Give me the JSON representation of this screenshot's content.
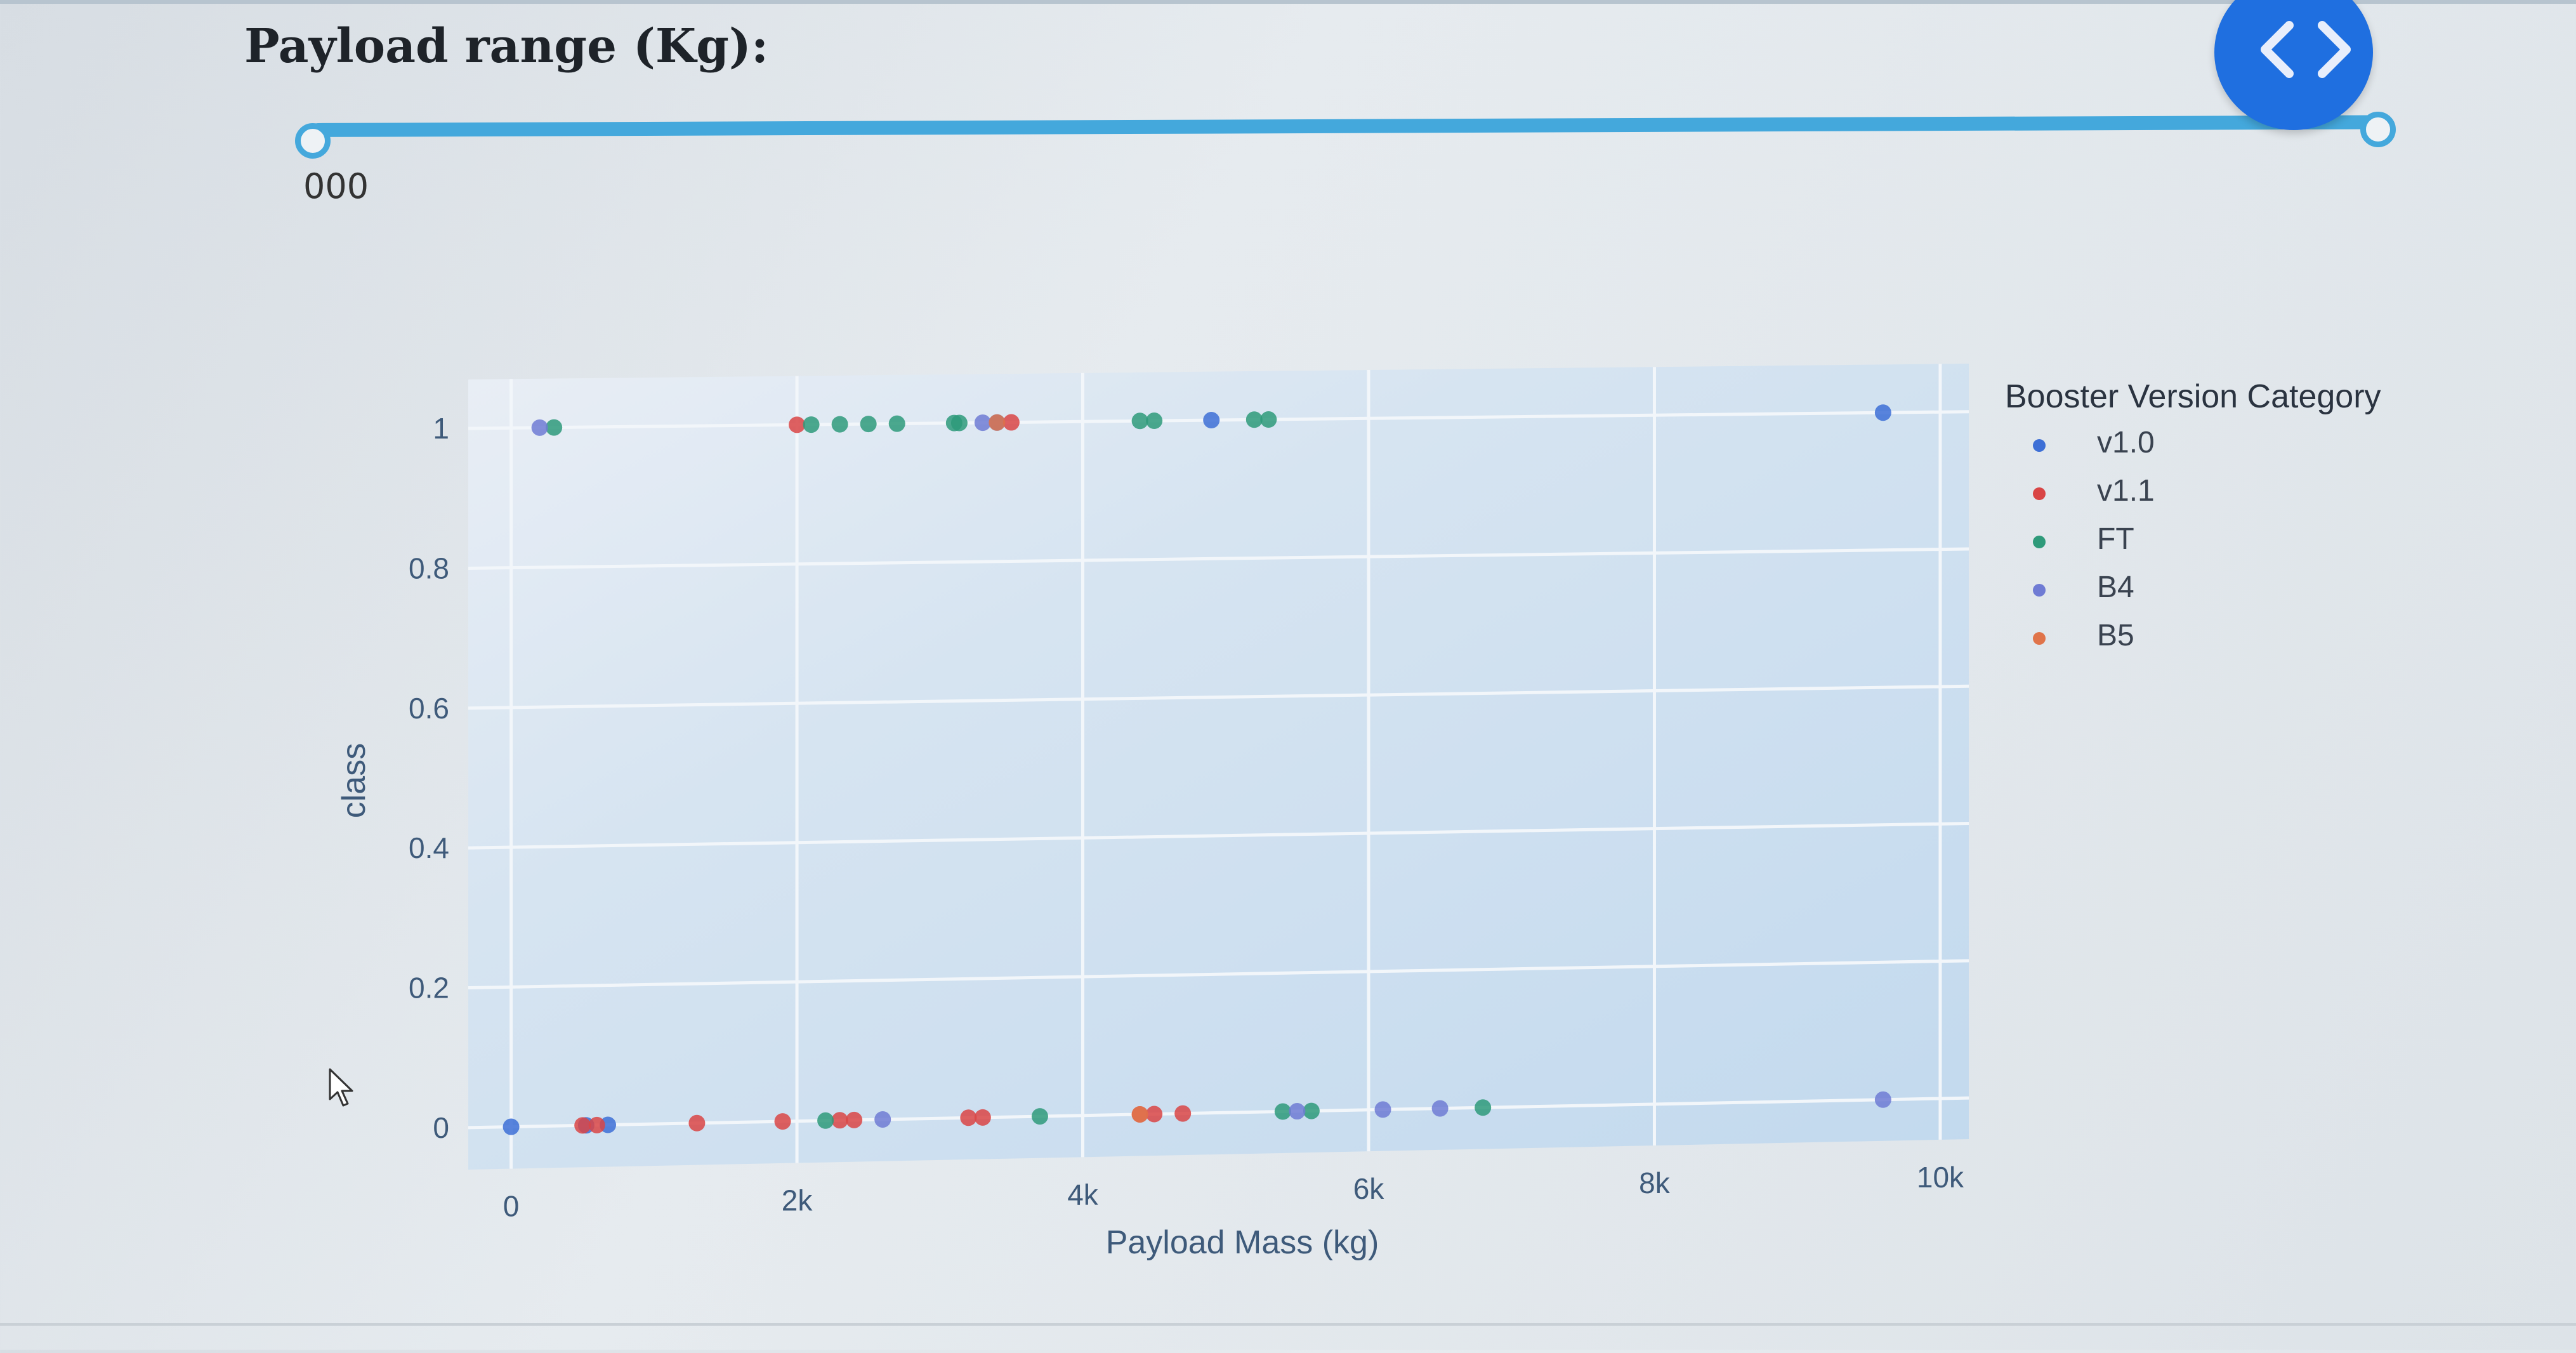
{
  "slider": {
    "title": "Payload range (Kg):",
    "mark_label": "000",
    "range": [
      0,
      10000
    ]
  },
  "chart_data": {
    "type": "scatter",
    "title": "",
    "xlabel": "Payload Mass (kg)",
    "ylabel": "class",
    "xlim": [
      -300,
      10200
    ],
    "ylim": [
      -0.06,
      1.07
    ],
    "x_ticks": [
      {
        "value": 0,
        "label": "0"
      },
      {
        "value": 2000,
        "label": "2k"
      },
      {
        "value": 4000,
        "label": "4k"
      },
      {
        "value": 6000,
        "label": "6k"
      },
      {
        "value": 8000,
        "label": "8k"
      },
      {
        "value": 10000,
        "label": "10k"
      }
    ],
    "y_ticks": [
      {
        "value": 0,
        "label": "0"
      },
      {
        "value": 0.2,
        "label": "0.2"
      },
      {
        "value": 0.4,
        "label": "0.4"
      },
      {
        "value": 0.6,
        "label": "0.6"
      },
      {
        "value": 0.8,
        "label": "0.8"
      },
      {
        "value": 1,
        "label": "1"
      }
    ],
    "grid": true,
    "legend_title": "Booster Version Category",
    "legend_position": "right",
    "series": [
      {
        "name": "v1.0",
        "color": "#3d6fd6",
        "points": [
          [
            0,
            0
          ],
          [
            525,
            0
          ],
          [
            677,
            0
          ],
          [
            3400,
            1
          ],
          [
            4900,
            1
          ],
          [
            9600,
            1
          ]
        ]
      },
      {
        "name": "v1.1",
        "color": "#d94545",
        "points": [
          [
            500,
            0
          ],
          [
            600,
            0
          ],
          [
            1300,
            0
          ],
          [
            1900,
            0
          ],
          [
            2000,
            1
          ],
          [
            2300,
            0
          ],
          [
            2400,
            0
          ],
          [
            3200,
            0
          ],
          [
            3300,
            0
          ],
          [
            3500,
            1
          ],
          [
            4400,
            0
          ],
          [
            4500,
            0
          ],
          [
            4700,
            0
          ]
        ]
      },
      {
        "name": "FT",
        "color": "#2e9a7a",
        "points": [
          [
            300,
            1
          ],
          [
            2100,
            1
          ],
          [
            2200,
            0
          ],
          [
            2300,
            1
          ],
          [
            2500,
            1
          ],
          [
            2700,
            1
          ],
          [
            3100,
            1
          ],
          [
            3136,
            1
          ],
          [
            3700,
            0
          ],
          [
            4400,
            1
          ],
          [
            4500,
            1
          ],
          [
            5200,
            1
          ],
          [
            5300,
            1
          ],
          [
            5400,
            0
          ],
          [
            5600,
            0
          ],
          [
            6800,
            0
          ]
        ]
      },
      {
        "name": "B4",
        "color": "#6f7bd4",
        "points": [
          [
            200,
            1
          ],
          [
            2600,
            0
          ],
          [
            3300,
            1
          ],
          [
            5500,
            0
          ],
          [
            6100,
            0
          ],
          [
            6500,
            0
          ],
          [
            9600,
            0
          ]
        ]
      },
      {
        "name": "B5",
        "color": "#e0744a",
        "points": [
          [
            3400,
            1
          ],
          [
            4400,
            0
          ]
        ]
      }
    ]
  },
  "icons": {
    "nav": "code-brackets-icon",
    "cursor": "mouse-pointer-icon"
  }
}
